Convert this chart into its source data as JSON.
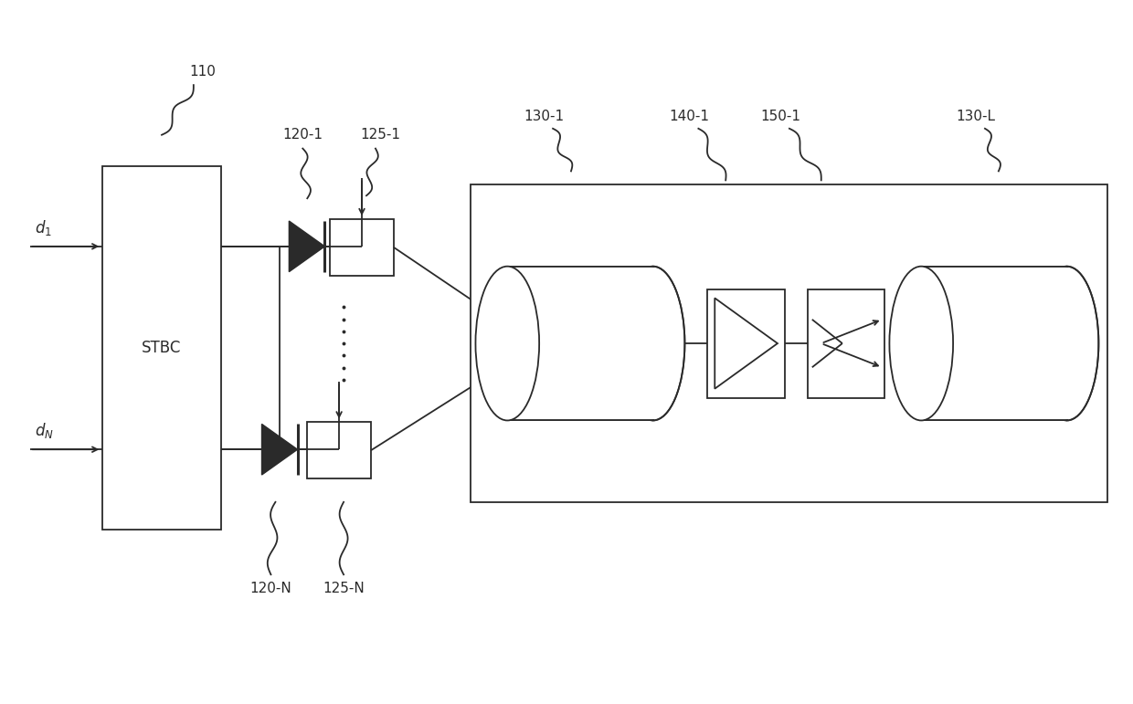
{
  "bg_color": "#ffffff",
  "line_color": "#2a2a2a",
  "fig_width": 12.4,
  "fig_height": 7.71,
  "labels": {
    "d1": "$d_1$",
    "dN": "$d_N$",
    "stbc": "STBC",
    "lbl_110": "110",
    "lbl_120_1": "120-1",
    "lbl_125_1": "125-1",
    "lbl_120_N": "120-N",
    "lbl_125_N": "125-N",
    "lbl_130_1": "130-1",
    "lbl_140_1": "140-1",
    "lbl_150_1": "150-1",
    "lbl_130_L": "130-L"
  }
}
